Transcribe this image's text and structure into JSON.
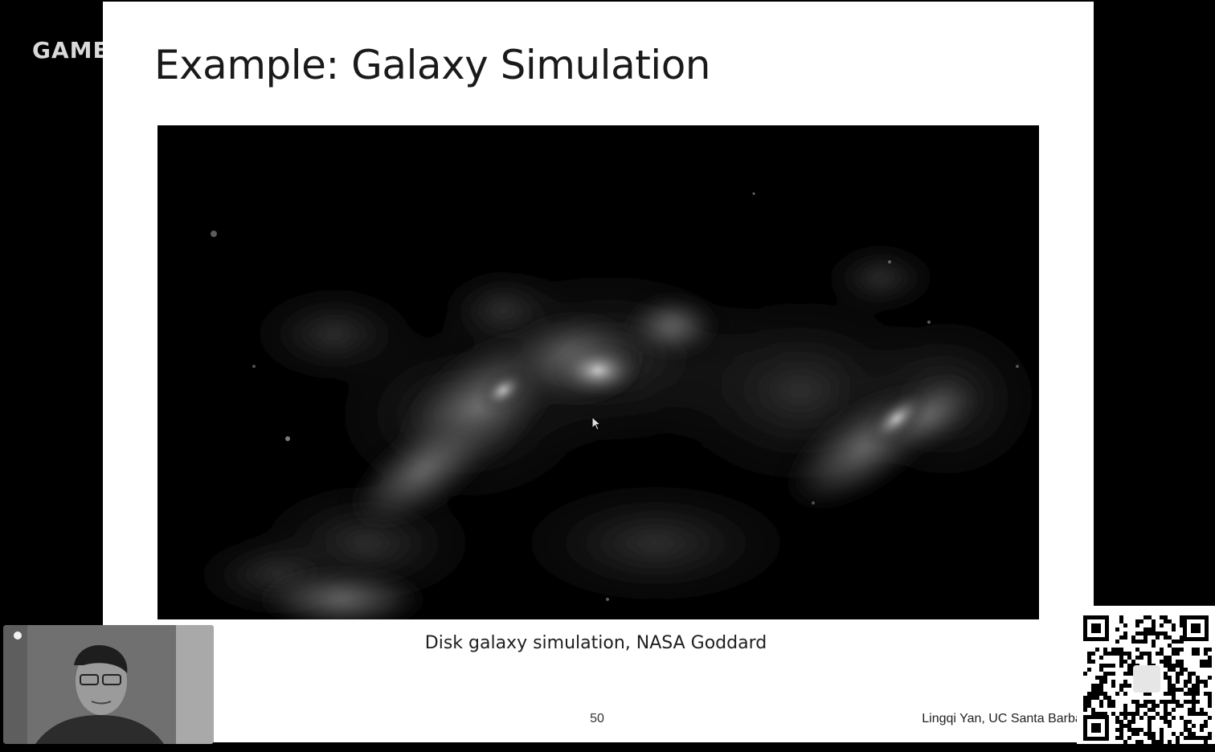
{
  "overlay": {
    "logo_text": "GAME"
  },
  "slide": {
    "title": "Example: Galaxy Simulation",
    "caption": "Disk galaxy simulation, NASA Goddard",
    "page_number": "50",
    "credit": "Lingqi Yan, UC Santa Barbara"
  },
  "video": {
    "icon": "mouse-cursor-icon"
  },
  "colors": {
    "slide_background": "#ffffff",
    "stage_background": "#000000",
    "title_text": "#1a1a1a"
  }
}
